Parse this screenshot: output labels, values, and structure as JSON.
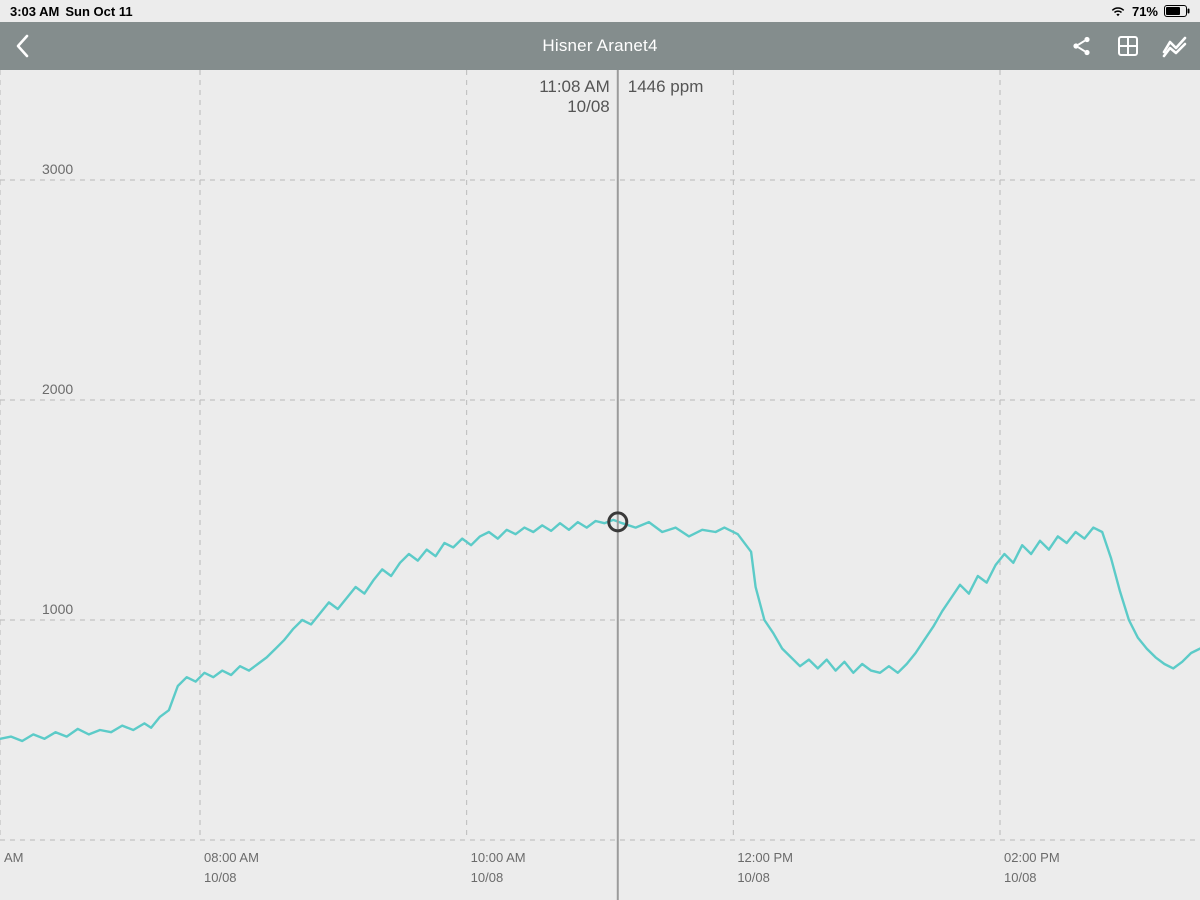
{
  "status_bar": {
    "time": "3:03 AM",
    "date": "Sun Oct 11",
    "battery_percent": "71%",
    "wifi_bars": 3
  },
  "nav": {
    "title": "Hisner Aranet4"
  },
  "chart": {
    "type": "line",
    "background_color": "#ececec",
    "grid_color": "#b9b9b9",
    "line_color": "#5ccbc8",
    "line_width": 2.4,
    "text_color": "#6b6b6b",
    "y_axis": {
      "min": 0,
      "max": 3500,
      "ticks": [
        1000,
        2000,
        3000
      ]
    },
    "x_axis": {
      "min_minutes": 390,
      "max_minutes": 930,
      "ticks": [
        {
          "minutes": 390,
          "time_label": "AM",
          "date_label": ""
        },
        {
          "minutes": 480,
          "time_label": "08:00 AM",
          "date_label": "10/08"
        },
        {
          "minutes": 600,
          "time_label": "10:00 AM",
          "date_label": "10/08"
        },
        {
          "minutes": 720,
          "time_label": "12:00 PM",
          "date_label": "10/08"
        },
        {
          "minutes": 840,
          "time_label": "02:00 PM",
          "date_label": "10/08"
        }
      ]
    },
    "cursor": {
      "minutes": 668,
      "value": 1446,
      "time_label": "11:08 AM",
      "date_label": "10/08",
      "value_label": "1446 ppm",
      "ring_radius": 9,
      "ring_color": "#3a3a3a"
    },
    "series": [
      [
        390,
        460
      ],
      [
        395,
        470
      ],
      [
        400,
        450
      ],
      [
        405,
        480
      ],
      [
        410,
        460
      ],
      [
        415,
        490
      ],
      [
        420,
        470
      ],
      [
        425,
        505
      ],
      [
        430,
        480
      ],
      [
        435,
        500
      ],
      [
        440,
        490
      ],
      [
        445,
        520
      ],
      [
        450,
        500
      ],
      [
        455,
        530
      ],
      [
        458,
        510
      ],
      [
        462,
        560
      ],
      [
        466,
        590
      ],
      [
        470,
        700
      ],
      [
        474,
        740
      ],
      [
        478,
        720
      ],
      [
        482,
        760
      ],
      [
        486,
        740
      ],
      [
        490,
        770
      ],
      [
        494,
        750
      ],
      [
        498,
        790
      ],
      [
        502,
        770
      ],
      [
        506,
        800
      ],
      [
        510,
        830
      ],
      [
        514,
        870
      ],
      [
        518,
        910
      ],
      [
        522,
        960
      ],
      [
        526,
        1000
      ],
      [
        530,
        980
      ],
      [
        534,
        1030
      ],
      [
        538,
        1080
      ],
      [
        542,
        1050
      ],
      [
        546,
        1100
      ],
      [
        550,
        1150
      ],
      [
        554,
        1120
      ],
      [
        558,
        1180
      ],
      [
        562,
        1230
      ],
      [
        566,
        1200
      ],
      [
        570,
        1260
      ],
      [
        574,
        1300
      ],
      [
        578,
        1270
      ],
      [
        582,
        1320
      ],
      [
        586,
        1290
      ],
      [
        590,
        1350
      ],
      [
        594,
        1330
      ],
      [
        598,
        1370
      ],
      [
        602,
        1340
      ],
      [
        606,
        1380
      ],
      [
        610,
        1400
      ],
      [
        614,
        1370
      ],
      [
        618,
        1410
      ],
      [
        622,
        1390
      ],
      [
        626,
        1420
      ],
      [
        630,
        1400
      ],
      [
        634,
        1430
      ],
      [
        638,
        1405
      ],
      [
        642,
        1440
      ],
      [
        646,
        1410
      ],
      [
        650,
        1445
      ],
      [
        654,
        1420
      ],
      [
        658,
        1450
      ],
      [
        662,
        1440
      ],
      [
        666,
        1455
      ],
      [
        670,
        1440
      ],
      [
        676,
        1420
      ],
      [
        682,
        1445
      ],
      [
        688,
        1400
      ],
      [
        694,
        1420
      ],
      [
        700,
        1380
      ],
      [
        706,
        1410
      ],
      [
        712,
        1400
      ],
      [
        716,
        1420
      ],
      [
        722,
        1390
      ],
      [
        728,
        1310
      ],
      [
        730,
        1150
      ],
      [
        734,
        1000
      ],
      [
        738,
        940
      ],
      [
        742,
        870
      ],
      [
        746,
        830
      ],
      [
        750,
        790
      ],
      [
        754,
        820
      ],
      [
        758,
        780
      ],
      [
        762,
        820
      ],
      [
        766,
        770
      ],
      [
        770,
        810
      ],
      [
        774,
        760
      ],
      [
        778,
        800
      ],
      [
        782,
        770
      ],
      [
        786,
        760
      ],
      [
        790,
        790
      ],
      [
        794,
        760
      ],
      [
        798,
        800
      ],
      [
        802,
        850
      ],
      [
        806,
        910
      ],
      [
        810,
        970
      ],
      [
        814,
        1040
      ],
      [
        818,
        1100
      ],
      [
        822,
        1160
      ],
      [
        826,
        1120
      ],
      [
        830,
        1200
      ],
      [
        834,
        1170
      ],
      [
        838,
        1250
      ],
      [
        842,
        1300
      ],
      [
        846,
        1260
      ],
      [
        850,
        1340
      ],
      [
        854,
        1300
      ],
      [
        858,
        1360
      ],
      [
        862,
        1320
      ],
      [
        866,
        1380
      ],
      [
        870,
        1350
      ],
      [
        874,
        1400
      ],
      [
        878,
        1370
      ],
      [
        882,
        1420
      ],
      [
        886,
        1400
      ],
      [
        890,
        1280
      ],
      [
        894,
        1130
      ],
      [
        898,
        1000
      ],
      [
        902,
        920
      ],
      [
        906,
        870
      ],
      [
        910,
        830
      ],
      [
        914,
        800
      ],
      [
        918,
        780
      ],
      [
        922,
        810
      ],
      [
        926,
        850
      ],
      [
        930,
        870
      ]
    ]
  }
}
